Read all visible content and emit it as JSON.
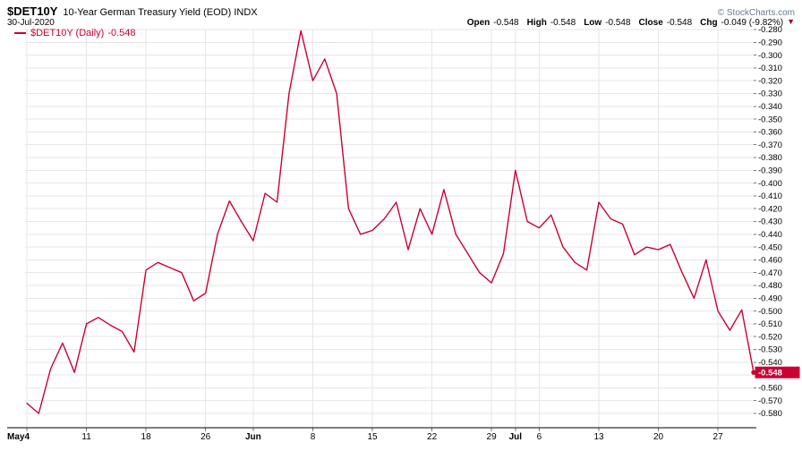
{
  "header": {
    "symbol": "$DET10Y",
    "title": "10-Year German Treasury Yield (EOD) INDX",
    "date": "30-Jul-2020",
    "copyright": "© StockCharts.com",
    "quote": {
      "items": [
        {
          "label": "Open",
          "value": "-0.548"
        },
        {
          "label": "High",
          "value": "-0.548"
        },
        {
          "label": "Low",
          "value": "-0.548"
        },
        {
          "label": "Close",
          "value": "-0.548"
        },
        {
          "label": "Chg",
          "value": "-0.049 (-9.82%)"
        }
      ],
      "down_arrow": "▼"
    }
  },
  "legend": {
    "label": "$DET10Y (Daily)",
    "value": "-0.548"
  },
  "chart_data": {
    "type": "line",
    "title": "$DET10Y 10-Year German Treasury Yield (EOD) INDX",
    "series_name": "$DET10Y (Daily)",
    "line_color": "#cc0033",
    "grid": true,
    "legend_position": "top-left",
    "ylim": [
      -0.58,
      -0.28
    ],
    "y_step": 0.01,
    "last_value": -0.548,
    "last_value_label": "-0.548",
    "x": [
      "May 4",
      "May 5",
      "May 6",
      "May 7",
      "May 8",
      "May 11",
      "May 12",
      "May 13",
      "May 14",
      "May 15",
      "May 18",
      "May 19",
      "May 20",
      "May 21",
      "May 22",
      "May 26",
      "May 27",
      "May 28",
      "May 29",
      "Jun 1",
      "Jun 2",
      "Jun 3",
      "Jun 4",
      "Jun 5",
      "Jun 8",
      "Jun 9",
      "Jun 10",
      "Jun 11",
      "Jun 12",
      "Jun 15",
      "Jun 16",
      "Jun 17",
      "Jun 18",
      "Jun 19",
      "Jun 22",
      "Jun 23",
      "Jun 24",
      "Jun 25",
      "Jun 26",
      "Jun 29",
      "Jun 30",
      "Jul 1",
      "Jul 2",
      "Jul 6",
      "Jul 7",
      "Jul 8",
      "Jul 9",
      "Jul 10",
      "Jul 13",
      "Jul 14",
      "Jul 15",
      "Jul 16",
      "Jul 17",
      "Jul 20",
      "Jul 21",
      "Jul 22",
      "Jul 23",
      "Jul 24",
      "Jul 27",
      "Jul 28",
      "Jul 29",
      "Jul 30"
    ],
    "values": [
      -0.572,
      -0.58,
      -0.545,
      -0.525,
      -0.548,
      -0.51,
      -0.505,
      -0.511,
      -0.516,
      -0.532,
      -0.468,
      -0.462,
      -0.466,
      -0.47,
      -0.492,
      -0.486,
      -0.44,
      -0.414,
      -0.43,
      -0.445,
      -0.408,
      -0.415,
      -0.33,
      -0.281,
      -0.32,
      -0.303,
      -0.33,
      -0.42,
      -0.44,
      -0.437,
      -0.428,
      -0.415,
      -0.452,
      -0.42,
      -0.44,
      -0.405,
      -0.44,
      -0.455,
      -0.47,
      -0.478,
      -0.455,
      -0.39,
      -0.43,
      -0.435,
      -0.425,
      -0.45,
      -0.462,
      -0.468,
      -0.415,
      -0.428,
      -0.432,
      -0.456,
      -0.45,
      -0.452,
      -0.448,
      -0.47,
      -0.49,
      -0.46,
      -0.5,
      -0.515,
      -0.499,
      -0.548
    ],
    "y_tick_labels": [
      "-0.280",
      "-0.290",
      "-0.300",
      "-0.310",
      "-0.320",
      "-0.330",
      "-0.340",
      "-0.350",
      "-0.360",
      "-0.370",
      "-0.380",
      "-0.390",
      "-0.400",
      "-0.410",
      "-0.420",
      "-0.430",
      "-0.440",
      "-0.450",
      "-0.460",
      "-0.470",
      "-0.480",
      "-0.490",
      "-0.500",
      "-0.510",
      "-0.520",
      "-0.530",
      "-0.540",
      "-0.560",
      "-0.570",
      "-0.580"
    ],
    "x_ticks": [
      {
        "index": 0,
        "label": "May4",
        "bold": true
      },
      {
        "index": 5,
        "label": "11",
        "bold": false
      },
      {
        "index": 10,
        "label": "18",
        "bold": false
      },
      {
        "index": 15,
        "label": "26",
        "bold": false
      },
      {
        "index": 19,
        "label": "Jun",
        "bold": true
      },
      {
        "index": 24,
        "label": "8",
        "bold": false
      },
      {
        "index": 29,
        "label": "15",
        "bold": false
      },
      {
        "index": 34,
        "label": "22",
        "bold": false
      },
      {
        "index": 39,
        "label": "29",
        "bold": false
      },
      {
        "index": 41,
        "label": "Jul",
        "bold": true
      },
      {
        "index": 43,
        "label": "6",
        "bold": false
      },
      {
        "index": 48,
        "label": "13",
        "bold": false
      },
      {
        "index": 53,
        "label": "20",
        "bold": false
      },
      {
        "index": 58,
        "label": "27",
        "bold": false
      }
    ]
  }
}
